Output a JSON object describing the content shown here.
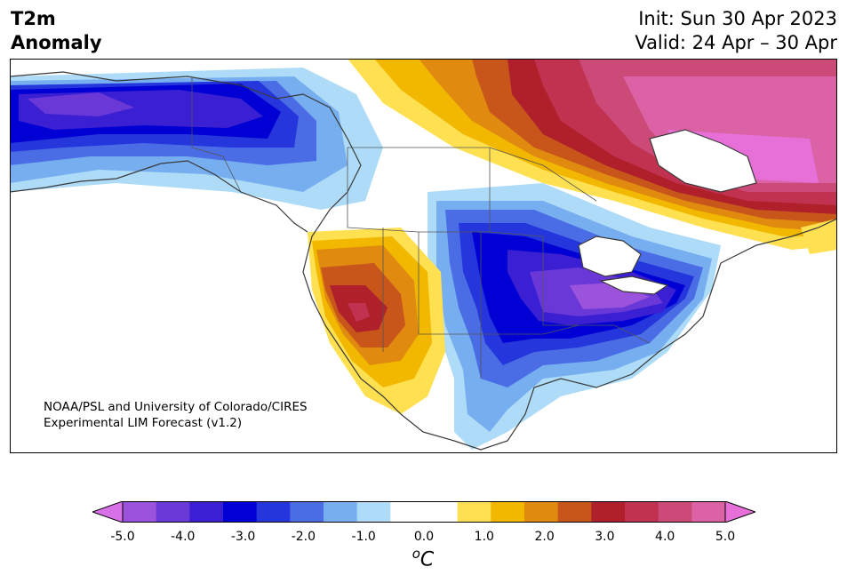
{
  "header": {
    "title_line1": "T2m",
    "title_line2": "Anomaly",
    "init_line": "Init: Sun 30 Apr 2023",
    "valid_line": "Valid: 24 Apr – 30 Apr"
  },
  "credit": {
    "line1": "NOAA/PSL and University of Colorado/CIRES",
    "line2": "Experimental LIM Forecast (v1.2)"
  },
  "colorbar": {
    "units_base": "o",
    "units_letter": "C",
    "ticks": [
      "-5.0",
      "-4.0",
      "-3.0",
      "-2.0",
      "-1.0",
      "0.0",
      "1.0",
      "2.0",
      "3.0",
      "4.0",
      "5.0"
    ],
    "colors": [
      "#9b52dc",
      "#6b38d8",
      "#3a20d2",
      "#0000d4",
      "#2436dc",
      "#4a6ce4",
      "#76aef0",
      "#aedcf8",
      "#ffffff",
      "#ffffff",
      "#ffe050",
      "#f2b800",
      "#e08a10",
      "#c8561a",
      "#b0202a",
      "#c03250",
      "#cc4a78",
      "#dc62a6"
    ],
    "under_color": "#d870e8",
    "over_color": "#e670d8"
  },
  "palette": {
    "neg5": "#9b52dc",
    "neg4": "#6b38d8",
    "neg3": "#3a20d2",
    "neg25": "#0000d4",
    "neg2": "#2436dc",
    "neg15": "#4a6ce4",
    "neg1": "#76aef0",
    "neg05": "#aedcf8",
    "pos05": "#ffe050",
    "pos1": "#f2b800",
    "pos15": "#e08a10",
    "pos2": "#c8561a",
    "pos25": "#b0202a",
    "pos3": "#c03250",
    "pos35": "#cc4a78",
    "pos4": "#dc62a6",
    "pos5": "#e670d8"
  }
}
